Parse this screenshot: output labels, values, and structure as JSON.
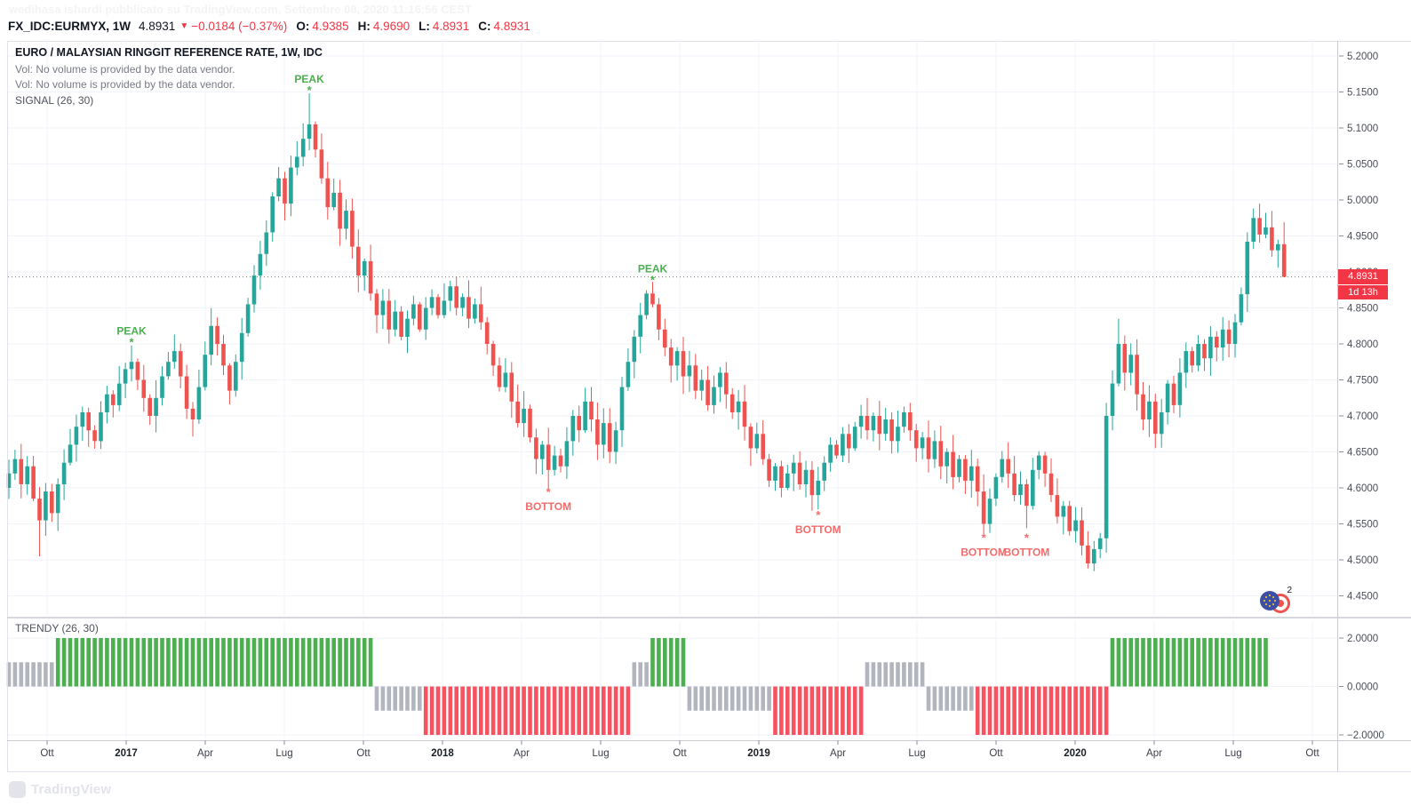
{
  "watermark": {
    "text": "wedihasa ishardi pubblicato su TradingView.com, Settembre 08, 2020 11:16:56 CEST"
  },
  "header": {
    "symbol": "FX_IDC:EURMYX, 1W",
    "price": "4.8931",
    "direction": "▼",
    "change": "−0.0184 (−0.37%)",
    "o_label": "O:",
    "o_value": "4.9385",
    "h_label": "H:",
    "h_value": "4.9690",
    "l_label": "L:",
    "l_value": "4.8931",
    "c_label": "C:",
    "c_value": "4.8931"
  },
  "legend": {
    "title": "EURO / MALAYSIAN RINGGIT REFERENCE RATE, 1W, IDC",
    "vol_line1": "Vol: No volume is provided by the data vendor.",
    "vol_line2": "Vol: No volume is provided by the data vendor.",
    "signal": "SIGNAL (26, 30)"
  },
  "price_line": {
    "value": "4.8931",
    "countdown": "1d 13h"
  },
  "pair_logo": {
    "count": "2"
  },
  "footer": {
    "logo_text": "TradingView"
  },
  "colors": {
    "candle_up": "#26a69a",
    "candle_down": "#ef5350",
    "trendy_green": "#4caf50",
    "trendy_red": "#f7525f",
    "trendy_gray": "#b2b5be",
    "annotation_up": "#4caf50",
    "annotation_down": "#f66a6a",
    "price_line": "#f23645",
    "badge_bg": "#f23645",
    "grid": "#f0f3fa",
    "axis_text": "#4a4e59",
    "axis_tick": "#8a8e98",
    "border": "#e0e3eb",
    "separator": "#c9ccd3",
    "text_dark": "#131722",
    "text_gray": "#787b86"
  },
  "annotations": [
    {
      "kind": "peak",
      "label": "PEAK",
      "week": 20,
      "price": 4.802
    },
    {
      "kind": "peak",
      "label": "PEAK",
      "week": 49,
      "price": 5.152
    },
    {
      "kind": "peak",
      "label": "PEAK",
      "week": 105,
      "price": 4.888
    },
    {
      "kind": "bottom",
      "label": "BOTTOM",
      "week": 88,
      "price": 4.594
    },
    {
      "kind": "bottom",
      "label": "BOTTOM",
      "week": 132,
      "price": 4.562
    },
    {
      "kind": "bottom",
      "label": "BOTTOM",
      "week": 159,
      "price": 4.53
    },
    {
      "kind": "bottom",
      "label": "BOTTOM",
      "week": 166,
      "price": 4.53
    }
  ],
  "chart_data": {
    "type": "candlestick",
    "title": "EURO / MALAYSIAN RINGGIT REFERENCE RATE, 1W, IDC",
    "symbol": "FX_IDC:EURMYX",
    "interval": "1W",
    "price_axis": {
      "ticks": [
        "5.2000",
        "5.1500",
        "5.1000",
        "5.0500",
        "5.0000",
        "4.9500",
        "4.9000",
        "4.8500",
        "4.8000",
        "4.7500",
        "4.7000",
        "4.6500",
        "4.6000",
        "4.5500",
        "4.5000",
        "4.4500"
      ],
      "min": 4.42,
      "max": 5.23,
      "step": 0.05
    },
    "time_axis": {
      "labels": [
        "Ott",
        "2017",
        "Apr",
        "Lug",
        "Ott",
        "2018",
        "Apr",
        "Lug",
        "Ott",
        "2019",
        "Apr",
        "Lug",
        "Ott",
        "2020",
        "Apr",
        "Lug",
        "Ott"
      ]
    },
    "open_first": 4.6,
    "closes": [
      4.62,
      4.64,
      4.605,
      4.63,
      4.585,
      4.555,
      4.595,
      4.565,
      4.605,
      4.635,
      4.66,
      4.685,
      4.705,
      4.68,
      4.665,
      4.705,
      4.73,
      4.715,
      4.745,
      4.765,
      4.775,
      4.75,
      4.725,
      4.7,
      4.725,
      4.755,
      4.775,
      4.79,
      4.755,
      4.71,
      4.695,
      4.74,
      4.785,
      4.825,
      4.8,
      4.77,
      4.735,
      4.775,
      4.815,
      4.855,
      4.895,
      4.925,
      4.955,
      5.005,
      5.03,
      4.995,
      5.045,
      5.06,
      5.085,
      5.105,
      5.07,
      5.03,
      4.99,
      5.01,
      4.96,
      4.985,
      4.935,
      4.895,
      4.915,
      4.87,
      4.84,
      4.86,
      4.82,
      4.845,
      4.81,
      4.835,
      4.855,
      4.82,
      4.85,
      4.865,
      4.84,
      4.86,
      4.88,
      4.85,
      4.865,
      4.835,
      4.855,
      4.83,
      4.8,
      4.77,
      4.74,
      4.76,
      4.72,
      4.69,
      4.71,
      4.67,
      4.64,
      4.66,
      4.625,
      4.645,
      4.63,
      4.665,
      4.7,
      4.68,
      4.72,
      4.695,
      4.66,
      4.69,
      4.65,
      4.68,
      4.74,
      4.775,
      4.81,
      4.84,
      4.87,
      4.855,
      4.82,
      4.795,
      4.77,
      4.79,
      4.755,
      4.77,
      4.735,
      4.75,
      4.715,
      4.74,
      4.76,
      4.73,
      4.705,
      4.72,
      4.685,
      4.655,
      4.675,
      4.64,
      4.61,
      4.63,
      4.6,
      4.62,
      4.635,
      4.605,
      4.625,
      4.59,
      4.61,
      4.635,
      4.66,
      4.645,
      4.675,
      4.655,
      4.685,
      4.7,
      4.68,
      4.7,
      4.675,
      4.695,
      4.665,
      4.685,
      4.705,
      4.68,
      4.655,
      4.67,
      4.64,
      4.665,
      4.63,
      4.65,
      4.615,
      4.64,
      4.61,
      4.63,
      4.595,
      4.55,
      4.585,
      4.615,
      4.64,
      4.62,
      4.59,
      4.605,
      4.575,
      4.625,
      4.645,
      4.62,
      4.59,
      4.56,
      4.575,
      4.54,
      4.555,
      4.52,
      4.495,
      4.515,
      4.53,
      4.7,
      4.745,
      4.8,
      4.76,
      4.785,
      4.73,
      4.695,
      4.72,
      4.675,
      4.705,
      4.745,
      4.715,
      4.76,
      4.79,
      4.77,
      4.8,
      4.78,
      4.81,
      4.795,
      4.82,
      4.8,
      4.83,
      4.869,
      4.942,
      4.975,
      4.952,
      4.962,
      4.93,
      4.9385,
      4.8931
    ],
    "wick_overrides": {
      "5": {
        "low": 4.505
      },
      "20": {
        "high": 4.798
      },
      "49": {
        "high": 5.148
      },
      "88": {
        "low": 4.598
      },
      "105": {
        "high": 4.886
      },
      "131": {
        "low": 4.568
      },
      "132": {
        "low": 4.57
      },
      "159": {
        "low": 4.536
      },
      "166": {
        "low": 4.544
      },
      "176": {
        "low": 4.488
      },
      "179": {
        "low": 4.51,
        "high": 4.718
      },
      "181": {
        "high": 4.835
      },
      "202": {
        "high": 4.955
      },
      "203": {
        "high": 4.988
      }
    },
    "last_candle": {
      "open": 4.9385,
      "high": 4.969,
      "low": 4.8931,
      "close": 4.8931
    },
    "indicator": {
      "name": "TRENDY (26, 30)",
      "ticks": [
        {
          "value": 2,
          "text": "2.0000"
        },
        {
          "value": 0,
          "text": "0.0000"
        },
        {
          "value": -2,
          "text": "−2.0000"
        }
      ],
      "ylim": [
        -2.4,
        2.4
      ],
      "segments": [
        [
          8,
          1,
          "gray"
        ],
        [
          52,
          2,
          "green"
        ],
        [
          8,
          -1,
          "gray"
        ],
        [
          34,
          -2,
          "red"
        ],
        [
          3,
          1,
          "gray"
        ],
        [
          6,
          2,
          "green"
        ],
        [
          14,
          -1,
          "gray"
        ],
        [
          15,
          -2,
          "red"
        ],
        [
          10,
          1,
          "gray"
        ],
        [
          8,
          -1,
          "gray"
        ],
        [
          22,
          -2,
          "red"
        ],
        [
          26,
          2,
          "green"
        ]
      ]
    }
  }
}
